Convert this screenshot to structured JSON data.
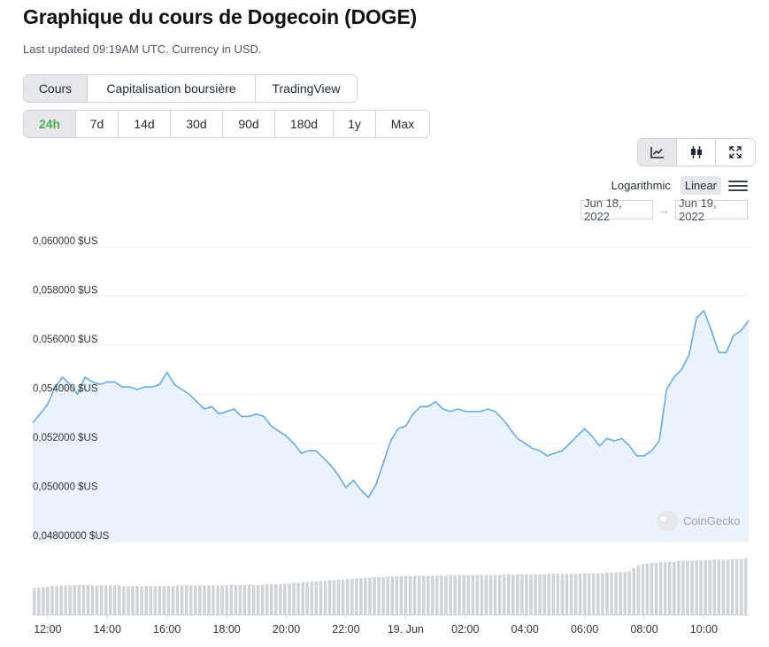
{
  "header": {
    "title": "Graphique du cours de Dogecoin (DOGE)",
    "subtitle": "Last updated 09:19AM UTC. Currency in USD."
  },
  "view_tabs": [
    {
      "label": "Cours",
      "active": true
    },
    {
      "label": "Capitalisation boursière",
      "active": false
    },
    {
      "label": "TradingView",
      "active": false
    }
  ],
  "range_tabs": [
    {
      "label": "24h",
      "active": true
    },
    {
      "label": "7d",
      "active": false
    },
    {
      "label": "14d",
      "active": false
    },
    {
      "label": "30d",
      "active": false
    },
    {
      "label": "90d",
      "active": false
    },
    {
      "label": "180d",
      "active": false
    },
    {
      "label": "1y",
      "active": false
    },
    {
      "label": "Max",
      "active": false
    }
  ],
  "tools": [
    {
      "icon": "line-chart-icon",
      "active": true
    },
    {
      "icon": "candlestick-icon",
      "active": false
    },
    {
      "icon": "expand-icon",
      "active": false
    }
  ],
  "scale": {
    "logarithmic": "Logarithmic",
    "linear": "Linear",
    "active": "Linear"
  },
  "date_range": {
    "from": "Jun 18, 2022",
    "arrow": "→",
    "to": "Jun 19, 2022"
  },
  "watermark": "CoinGecko",
  "colors": {
    "line": "#6aa9e0",
    "fill": "#eaf3fc",
    "volume": "#cfd4da",
    "active_range": "#4caf50"
  },
  "chart_data": {
    "type": "area",
    "ylabels": [
      "0,060000 $US",
      "0,058000 $US",
      "0,056000 $US",
      "0,054000 $US",
      "0,052000 $US",
      "0,050000 $US",
      "0,04800000 $US"
    ],
    "ylim": [
      0.048,
      0.06
    ],
    "xlabels": [
      "12:00",
      "14:00",
      "16:00",
      "18:00",
      "20:00",
      "22:00",
      "19. Jun",
      "02:00",
      "04:00",
      "06:00",
      "08:00",
      "10:00"
    ],
    "xlim": [
      "11:30",
      "11:30 +1d"
    ],
    "series": [
      {
        "values": [
          [
            "11:30",
            0.05285
          ],
          [
            "11:45",
            0.0532
          ],
          [
            "12:00",
            0.0536
          ],
          [
            "12:15",
            0.0543
          ],
          [
            "12:30",
            0.0547
          ],
          [
            "12:45",
            0.0544
          ],
          [
            "13:00",
            0.054
          ],
          [
            "13:15",
            0.0547
          ],
          [
            "13:30",
            0.0545
          ],
          [
            "13:45",
            0.0544
          ],
          [
            "14:00",
            0.0545
          ],
          [
            "14:15",
            0.0545
          ],
          [
            "14:30",
            0.0543
          ],
          [
            "14:45",
            0.0543
          ],
          [
            "15:00",
            0.0542
          ],
          [
            "15:15",
            0.0543
          ],
          [
            "15:30",
            0.0543
          ],
          [
            "15:45",
            0.0544
          ],
          [
            "16:00",
            0.0549
          ],
          [
            "16:15",
            0.0544
          ],
          [
            "16:30",
            0.0542
          ],
          [
            "16:45",
            0.054
          ],
          [
            "17:00",
            0.0537
          ],
          [
            "17:15",
            0.0534
          ],
          [
            "17:30",
            0.0535
          ],
          [
            "17:45",
            0.0532
          ],
          [
            "18:00",
            0.0533
          ],
          [
            "18:15",
            0.0534
          ],
          [
            "18:30",
            0.0531
          ],
          [
            "18:45",
            0.0531
          ],
          [
            "19:00",
            0.0532
          ],
          [
            "19:15",
            0.0531
          ],
          [
            "19:30",
            0.0527
          ],
          [
            "19:45",
            0.0525
          ],
          [
            "20:00",
            0.0523
          ],
          [
            "20:15",
            0.052
          ],
          [
            "20:30",
            0.0516
          ],
          [
            "20:45",
            0.0517
          ],
          [
            "21:00",
            0.0517
          ],
          [
            "21:15",
            0.0514
          ],
          [
            "21:30",
            0.0511
          ],
          [
            "21:45",
            0.0507
          ],
          [
            "22:00",
            0.0502
          ],
          [
            "22:15",
            0.0505
          ],
          [
            "22:30",
            0.0501
          ],
          [
            "22:45",
            0.0498
          ],
          [
            "23:00",
            0.0503
          ],
          [
            "23:15",
            0.0512
          ],
          [
            "23:30",
            0.0521
          ],
          [
            "23:45",
            0.0526
          ],
          [
            "00:00",
            0.0527
          ],
          [
            "00:15",
            0.0532
          ],
          [
            "00:30",
            0.0535
          ],
          [
            "00:45",
            0.0535
          ],
          [
            "01:00",
            0.0537
          ],
          [
            "01:15",
            0.0534
          ],
          [
            "01:30",
            0.0533
          ],
          [
            "01:45",
            0.0534
          ],
          [
            "02:00",
            0.0533
          ],
          [
            "02:15",
            0.0533
          ],
          [
            "02:30",
            0.0533
          ],
          [
            "02:45",
            0.0534
          ],
          [
            "03:00",
            0.0533
          ],
          [
            "03:15",
            0.053
          ],
          [
            "03:30",
            0.0526
          ],
          [
            "03:45",
            0.0522
          ],
          [
            "04:00",
            0.052
          ],
          [
            "04:15",
            0.0518
          ],
          [
            "04:30",
            0.0517
          ],
          [
            "04:45",
            0.0515
          ],
          [
            "05:00",
            0.0516
          ],
          [
            "05:15",
            0.0517
          ],
          [
            "05:30",
            0.052
          ],
          [
            "05:45",
            0.0523
          ],
          [
            "06:00",
            0.0526
          ],
          [
            "06:15",
            0.0523
          ],
          [
            "06:30",
            0.0519
          ],
          [
            "06:45",
            0.0522
          ],
          [
            "07:00",
            0.0521
          ],
          [
            "07:15",
            0.0522
          ],
          [
            "07:30",
            0.0519
          ],
          [
            "07:45",
            0.0515
          ],
          [
            "08:00",
            0.0515
          ],
          [
            "08:15",
            0.0517
          ],
          [
            "08:30",
            0.0521
          ],
          [
            "08:45",
            0.0542
          ],
          [
            "09:00",
            0.0547
          ],
          [
            "09:15",
            0.055
          ],
          [
            "09:30",
            0.0556
          ],
          [
            "09:45",
            0.0571
          ],
          [
            "10:00",
            0.0574
          ],
          [
            "10:15",
            0.0566
          ],
          [
            "10:30",
            0.0557
          ],
          [
            "10:45",
            0.0557
          ],
          [
            "11:00",
            0.0564
          ],
          [
            "11:15",
            0.0566
          ],
          [
            "11:30",
            0.057
          ]
        ]
      }
    ],
    "volume": [
      0.42,
      0.43,
      0.43,
      0.44,
      0.45,
      0.45,
      0.46,
      0.46,
      0.46,
      0.47,
      0.47,
      0.47,
      0.47,
      0.46,
      0.46,
      0.46,
      0.46,
      0.46,
      0.46,
      0.46,
      0.45,
      0.45,
      0.45,
      0.45,
      0.45,
      0.45,
      0.45,
      0.45,
      0.45,
      0.45,
      0.45,
      0.45,
      0.46,
      0.46,
      0.46,
      0.46,
      0.46,
      0.46,
      0.46,
      0.46,
      0.46,
      0.46,
      0.46,
      0.46,
      0.47,
      0.47,
      0.47,
      0.47,
      0.47,
      0.47,
      0.47,
      0.47,
      0.48,
      0.48,
      0.48,
      0.48,
      0.49,
      0.49,
      0.5,
      0.5,
      0.51,
      0.51,
      0.52,
      0.52,
      0.53,
      0.53,
      0.54,
      0.54,
      0.55,
      0.55,
      0.56,
      0.56,
      0.57,
      0.57,
      0.58,
      0.58,
      0.59,
      0.59,
      0.59,
      0.6,
      0.6,
      0.6,
      0.6,
      0.6,
      0.61,
      0.61,
      0.61,
      0.61,
      0.61,
      0.61,
      0.61,
      0.61,
      0.61,
      0.62,
      0.62,
      0.62,
      0.62,
      0.62,
      0.62,
      0.62,
      0.62,
      0.62,
      0.62,
      0.62,
      0.62,
      0.63,
      0.63,
      0.63,
      0.63,
      0.63,
      0.63,
      0.63,
      0.63,
      0.63,
      0.63,
      0.64,
      0.64,
      0.64,
      0.64,
      0.64,
      0.64,
      0.64,
      0.64,
      0.65,
      0.65,
      0.65,
      0.65,
      0.65,
      0.66,
      0.66,
      0.66,
      0.67,
      0.67,
      0.68,
      0.73,
      0.77,
      0.79,
      0.8,
      0.81,
      0.81,
      0.82,
      0.82,
      0.83,
      0.83,
      0.84,
      0.84,
      0.84,
      0.84,
      0.85,
      0.85,
      0.85,
      0.85,
      0.86,
      0.86,
      0.86,
      0.86,
      0.87,
      0.87,
      0.87,
      0.88
    ]
  }
}
